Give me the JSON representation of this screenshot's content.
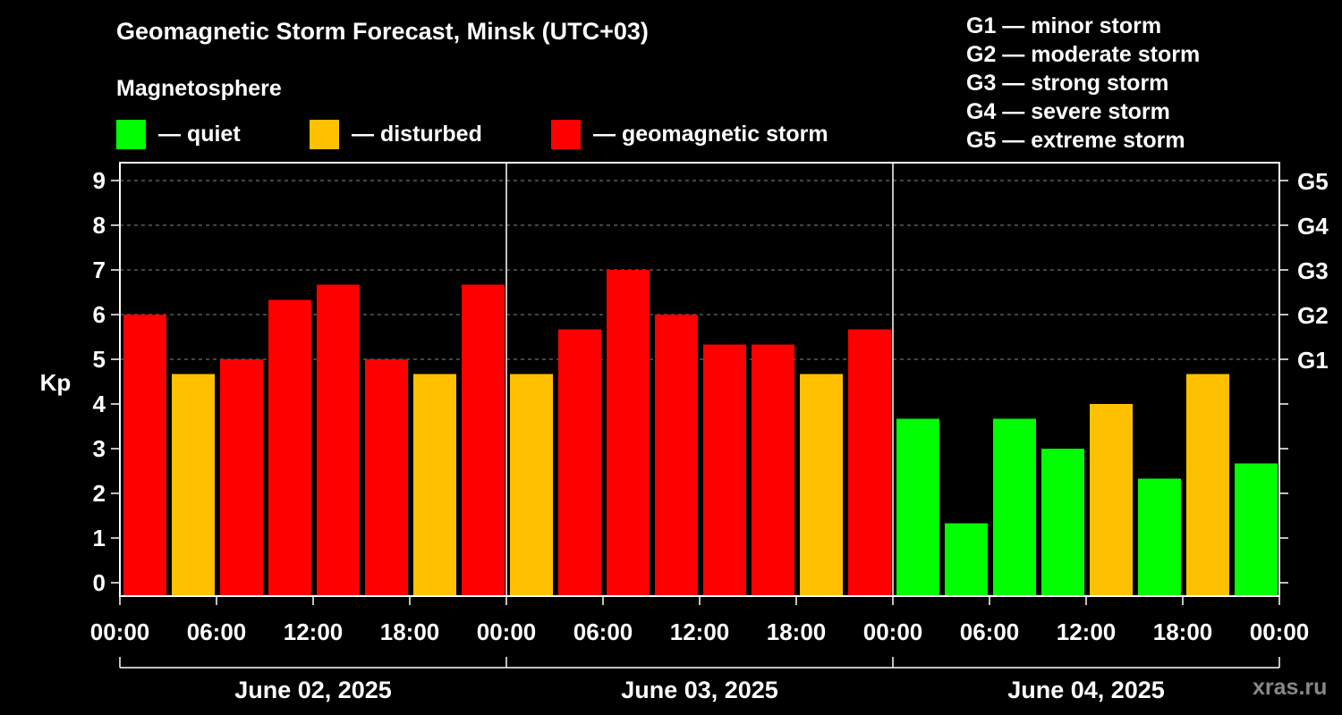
{
  "title": "Geomagnetic Storm Forecast, Minsk (UTC+03)",
  "subtitle": "Magnetosphere",
  "legend": [
    {
      "label": "— quiet",
      "color": "#00ff00"
    },
    {
      "label": "— disturbed",
      "color": "#ffc000"
    },
    {
      "label": "— geomagnetic storm",
      "color": "#ff0000"
    }
  ],
  "g_legend": [
    "G1 — minor storm",
    "G2 — moderate storm",
    "G3 — strong storm",
    "G4 — severe storm",
    "G5 — extreme storm"
  ],
  "watermark": "xras.ru",
  "chart_data": {
    "type": "bar",
    "title": "Geomagnetic Storm Forecast, Minsk (UTC+03)",
    "ylabel": "Kp",
    "ylim": [
      0,
      9
    ],
    "yticks": [
      "0",
      "1",
      "2",
      "3",
      "4",
      "5",
      "6",
      "7",
      "8",
      "9"
    ],
    "right_ticks": [
      {
        "kp": 5,
        "label": "G1"
      },
      {
        "kp": 6,
        "label": "G2"
      },
      {
        "kp": 7,
        "label": "G3"
      },
      {
        "kp": 8,
        "label": "G4"
      },
      {
        "kp": 9,
        "label": "G5"
      }
    ],
    "xticks": [
      "00:00",
      "06:00",
      "12:00",
      "18:00",
      "00:00",
      "06:00",
      "12:00",
      "18:00",
      "00:00",
      "06:00",
      "12:00",
      "18:00",
      "00:00"
    ],
    "days": [
      "June 02, 2025",
      "June 03, 2025",
      "June 04, 2025"
    ],
    "interval_hours": 3,
    "values": [
      6.0,
      4.67,
      5.0,
      6.33,
      6.67,
      5.0,
      4.67,
      6.67,
      4.67,
      5.67,
      7.0,
      6.0,
      5.33,
      5.33,
      4.67,
      5.67,
      3.67,
      1.33,
      3.67,
      3.0,
      4.0,
      2.33,
      4.67,
      2.67
    ],
    "colors": [
      "#ff0000",
      "#ffc000",
      "#ff0000",
      "#ff0000",
      "#ff0000",
      "#ff0000",
      "#ffc000",
      "#ff0000",
      "#ffc000",
      "#ff0000",
      "#ff0000",
      "#ff0000",
      "#ff0000",
      "#ff0000",
      "#ffc000",
      "#ff0000",
      "#00ff00",
      "#00ff00",
      "#00ff00",
      "#00ff00",
      "#ffc000",
      "#00ff00",
      "#ffc000",
      "#00ff00"
    ]
  }
}
